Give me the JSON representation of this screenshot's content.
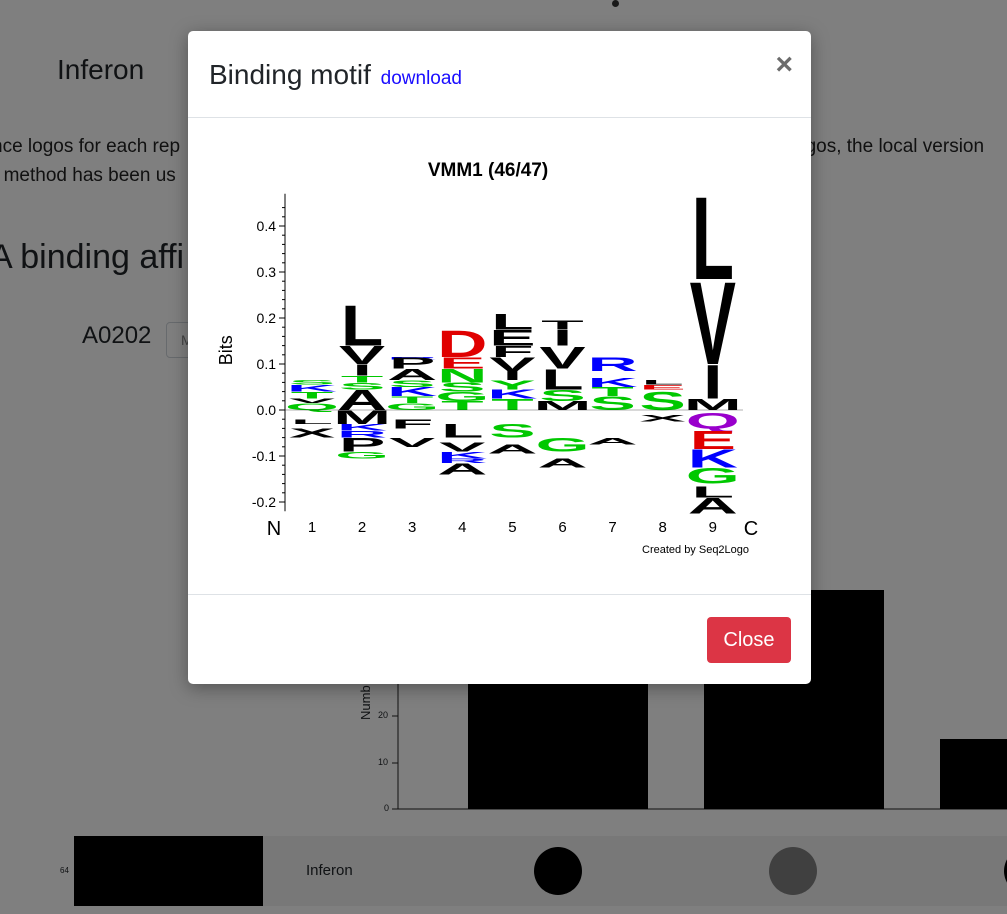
{
  "page": {
    "app_title": "Inferon",
    "intro_line1_left": "nce logos for each rep",
    "intro_line1_right": "ogos, the local version",
    "intro_line2": "r method has been us",
    "section_heading": "A binding affi",
    "allele_label": "A0202",
    "allele_select_value": "M"
  },
  "histogram": {
    "ylabel": "Numb",
    "ticks": [
      "20",
      "10",
      "0"
    ]
  },
  "bottom_strip": {
    "number": "64",
    "label": "Inferon"
  },
  "modal": {
    "title": "Binding motif",
    "download_link": "download",
    "close_icon": "×",
    "close_button": "Close"
  },
  "chart_data": {
    "type": "sequence-logo",
    "title": "VMM1 (46/47)",
    "ylabel": "Bits",
    "ylim": [
      -0.22,
      0.47
    ],
    "yticks": [
      "0.4",
      "0.3",
      "0.2",
      "0.1",
      "0.0",
      "-0.1",
      "-0.2"
    ],
    "ytick_values": [
      0.4,
      0.3,
      0.2,
      0.1,
      0.0,
      -0.1,
      -0.2
    ],
    "x_start_label": "N",
    "x_end_label": "C",
    "positions": [
      "1",
      "2",
      "3",
      "4",
      "5",
      "6",
      "7",
      "8",
      "9"
    ],
    "credit": "Created by Seq2Logo",
    "colors": {
      "black": "#000000",
      "green": "#00c800",
      "blue": "#0000ff",
      "red": "#e00000",
      "purple": "#9900cc"
    },
    "letters": [
      {
        "pos": 1,
        "letter": "K",
        "color": "#0000ff",
        "y0": 0.04,
        "y1": 0.055
      },
      {
        "pos": 1,
        "letter": "S",
        "color": "#00c800",
        "y0": 0.055,
        "y1": 0.065
      },
      {
        "pos": 1,
        "letter": "T",
        "color": "#00c800",
        "y0": 0.025,
        "y1": 0.04
      },
      {
        "pos": 1,
        "letter": "V",
        "color": "#000000",
        "y0": 0.015,
        "y1": 0.025
      },
      {
        "pos": 1,
        "letter": "Q",
        "color": "#00c800",
        "y0": 0.0,
        "y1": 0.015
      },
      {
        "pos": 1,
        "letter": "L",
        "color": "#000000",
        "y0": -0.03,
        "y1": -0.02
      },
      {
        "pos": 1,
        "letter": "X",
        "color": "#000000",
        "y0": -0.06,
        "y1": -0.04
      },
      {
        "pos": 2,
        "letter": "L",
        "color": "#000000",
        "y0": 0.14,
        "y1": 0.23
      },
      {
        "pos": 2,
        "letter": "V",
        "color": "#000000",
        "y0": 0.1,
        "y1": 0.14
      },
      {
        "pos": 2,
        "letter": "I",
        "color": "#000000",
        "y0": 0.075,
        "y1": 0.1
      },
      {
        "pos": 2,
        "letter": "T",
        "color": "#00c800",
        "y0": 0.06,
        "y1": 0.075
      },
      {
        "pos": 2,
        "letter": "S",
        "color": "#00c800",
        "y0": 0.045,
        "y1": 0.06
      },
      {
        "pos": 2,
        "letter": "A",
        "color": "#000000",
        "y0": 0.0,
        "y1": 0.045
      },
      {
        "pos": 2,
        "letter": "M",
        "color": "#000000",
        "y0": -0.03,
        "y1": 0.0
      },
      {
        "pos": 2,
        "letter": "K",
        "color": "#0000ff",
        "y0": -0.045,
        "y1": -0.03
      },
      {
        "pos": 2,
        "letter": "R",
        "color": "#0000ff",
        "y0": -0.06,
        "y1": -0.045
      },
      {
        "pos": 2,
        "letter": "P",
        "color": "#000000",
        "y0": -0.09,
        "y1": -0.06
      },
      {
        "pos": 2,
        "letter": "G",
        "color": "#00c800",
        "y0": -0.105,
        "y1": -0.09
      },
      {
        "pos": 3,
        "letter": "R",
        "color": "#0000ff",
        "y0": 0.11,
        "y1": 0.115
      },
      {
        "pos": 3,
        "letter": "P",
        "color": "#000000",
        "y0": 0.09,
        "y1": 0.115
      },
      {
        "pos": 3,
        "letter": "A",
        "color": "#000000",
        "y0": 0.065,
        "y1": 0.09
      },
      {
        "pos": 3,
        "letter": "S",
        "color": "#00c800",
        "y0": 0.05,
        "y1": 0.065
      },
      {
        "pos": 3,
        "letter": "K",
        "color": "#0000ff",
        "y0": 0.03,
        "y1": 0.05
      },
      {
        "pos": 3,
        "letter": "T",
        "color": "#00c800",
        "y0": 0.015,
        "y1": 0.03
      },
      {
        "pos": 3,
        "letter": "G",
        "color": "#00c800",
        "y0": 0.0,
        "y1": 0.015
      },
      {
        "pos": 3,
        "letter": "F",
        "color": "#000000",
        "y0": -0.04,
        "y1": -0.02
      },
      {
        "pos": 3,
        "letter": "V",
        "color": "#000000",
        "y0": -0.08,
        "y1": -0.06
      },
      {
        "pos": 4,
        "letter": "D",
        "color": "#e00000",
        "y0": 0.115,
        "y1": 0.175
      },
      {
        "pos": 4,
        "letter": "E",
        "color": "#e00000",
        "y0": 0.09,
        "y1": 0.115
      },
      {
        "pos": 4,
        "letter": "N",
        "color": "#00c800",
        "y0": 0.06,
        "y1": 0.09
      },
      {
        "pos": 4,
        "letter": "S",
        "color": "#00c800",
        "y0": 0.04,
        "y1": 0.06
      },
      {
        "pos": 4,
        "letter": "G",
        "color": "#00c800",
        "y0": 0.02,
        "y1": 0.04
      },
      {
        "pos": 4,
        "letter": "T",
        "color": "#00c800",
        "y0": 0.0,
        "y1": 0.02
      },
      {
        "pos": 4,
        "letter": "L",
        "color": "#000000",
        "y0": -0.06,
        "y1": -0.03
      },
      {
        "pos": 4,
        "letter": "V",
        "color": "#000000",
        "y0": -0.09,
        "y1": -0.07
      },
      {
        "pos": 4,
        "letter": "K",
        "color": "#0000ff",
        "y0": -0.105,
        "y1": -0.09
      },
      {
        "pos": 4,
        "letter": "R",
        "color": "#0000ff",
        "y0": -0.115,
        "y1": -0.105
      },
      {
        "pos": 4,
        "letter": "A",
        "color": "#000000",
        "y0": -0.14,
        "y1": -0.115
      },
      {
        "pos": 5,
        "letter": "L",
        "color": "#000000",
        "y0": 0.175,
        "y1": 0.21
      },
      {
        "pos": 5,
        "letter": "E",
        "color": "#000000",
        "y0": 0.14,
        "y1": 0.175
      },
      {
        "pos": 5,
        "letter": "F",
        "color": "#000000",
        "y0": 0.115,
        "y1": 0.14
      },
      {
        "pos": 5,
        "letter": "V",
        "color": "#000000",
        "y0": 0.085,
        "y1": 0.115
      },
      {
        "pos": 5,
        "letter": "I",
        "color": "#000000",
        "y0": 0.065,
        "y1": 0.085
      },
      {
        "pos": 5,
        "letter": "Y",
        "color": "#00c800",
        "y0": 0.045,
        "y1": 0.065
      },
      {
        "pos": 5,
        "letter": "K",
        "color": "#0000ff",
        "y0": 0.025,
        "y1": 0.045
      },
      {
        "pos": 5,
        "letter": "T",
        "color": "#00c800",
        "y0": 0.0,
        "y1": 0.025
      },
      {
        "pos": 5,
        "letter": "S",
        "color": "#00c800",
        "y0": -0.06,
        "y1": -0.03
      },
      {
        "pos": 5,
        "letter": "A",
        "color": "#000000",
        "y0": -0.095,
        "y1": -0.075
      },
      {
        "pos": 6,
        "letter": "T",
        "color": "#000000",
        "y0": 0.175,
        "y1": 0.195
      },
      {
        "pos": 6,
        "letter": "I",
        "color": "#000000",
        "y0": 0.14,
        "y1": 0.175
      },
      {
        "pos": 6,
        "letter": "V",
        "color": "#000000",
        "y0": 0.09,
        "y1": 0.14
      },
      {
        "pos": 6,
        "letter": "L",
        "color": "#000000",
        "y0": 0.045,
        "y1": 0.09
      },
      {
        "pos": 6,
        "letter": "S",
        "color": "#00c800",
        "y0": 0.02,
        "y1": 0.045
      },
      {
        "pos": 6,
        "letter": "M",
        "color": "#000000",
        "y0": 0.0,
        "y1": 0.02
      },
      {
        "pos": 6,
        "letter": "G",
        "color": "#00c800",
        "y0": -0.09,
        "y1": -0.06
      },
      {
        "pos": 6,
        "letter": "A",
        "color": "#000000",
        "y0": -0.125,
        "y1": -0.105
      },
      {
        "pos": 7,
        "letter": "R",
        "color": "#0000ff",
        "y0": 0.085,
        "y1": 0.115
      },
      {
        "pos": 7,
        "letter": "K",
        "color": "#0000ff",
        "y0": 0.05,
        "y1": 0.07
      },
      {
        "pos": 7,
        "letter": "T",
        "color": "#00c800",
        "y0": 0.03,
        "y1": 0.05
      },
      {
        "pos": 7,
        "letter": "S",
        "color": "#00c800",
        "y0": 0.0,
        "y1": 0.03
      },
      {
        "pos": 7,
        "letter": "A",
        "color": "#000000",
        "y0": -0.075,
        "y1": -0.06
      },
      {
        "pos": 8,
        "letter": "L",
        "color": "#000000",
        "y0": 0.055,
        "y1": 0.065
      },
      {
        "pos": 8,
        "letter": "E",
        "color": "#e00000",
        "y0": 0.045,
        "y1": 0.055
      },
      {
        "pos": 8,
        "letter": "S",
        "color": "#00c800",
        "y0": 0.0,
        "y1": 0.04
      },
      {
        "pos": 8,
        "letter": "X",
        "color": "#000000",
        "y0": -0.025,
        "y1": -0.01
      },
      {
        "pos": 9,
        "letter": "L",
        "color": "#000000",
        "y0": 0.285,
        "y1": 0.47
      },
      {
        "pos": 9,
        "letter": "V",
        "color": "#000000",
        "y0": 0.1,
        "y1": 0.285
      },
      {
        "pos": 9,
        "letter": "I",
        "color": "#000000",
        "y0": 0.025,
        "y1": 0.1
      },
      {
        "pos": 9,
        "letter": "M",
        "color": "#000000",
        "y0": 0.0,
        "y1": 0.025
      },
      {
        "pos": 9,
        "letter": "Q",
        "color": "#9900cc",
        "y0": -0.04,
        "y1": -0.005
      },
      {
        "pos": 9,
        "letter": "E",
        "color": "#e00000",
        "y0": -0.085,
        "y1": -0.045
      },
      {
        "pos": 9,
        "letter": "K",
        "color": "#0000ff",
        "y0": -0.125,
        "y1": -0.085
      },
      {
        "pos": 9,
        "letter": "G",
        "color": "#00c800",
        "y0": -0.16,
        "y1": -0.125
      },
      {
        "pos": 9,
        "letter": "L",
        "color": "#000000",
        "y0": -0.19,
        "y1": -0.165
      },
      {
        "pos": 9,
        "letter": "A",
        "color": "#000000",
        "y0": -0.225,
        "y1": -0.19
      }
    ]
  }
}
